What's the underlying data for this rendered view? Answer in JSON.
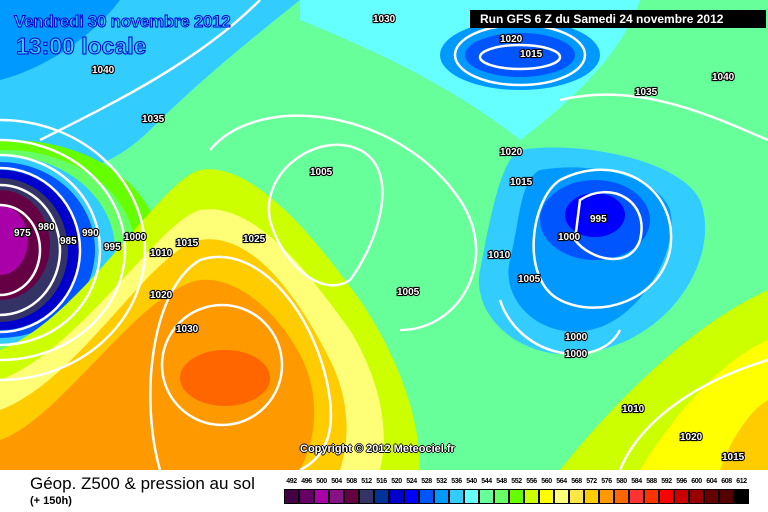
{
  "header": {
    "date": "Vendredi 30 novembre 2012",
    "time": "13:00 locale",
    "run": "Run GFS 6 Z du Samedi 24 novembre 2012"
  },
  "copyright": "Copyright © 2012 Meteociel.fr",
  "footer": {
    "title": "Géop. Z500 & pression au sol",
    "subtitle": "(+ 150h)"
  },
  "legend": {
    "labels": [
      "492",
      "496",
      "500",
      "504",
      "508",
      "512",
      "516",
      "520",
      "524",
      "528",
      "532",
      "536",
      "540",
      "544",
      "548",
      "552",
      "556",
      "560",
      "564",
      "568",
      "572",
      "576",
      "580",
      "584",
      "588",
      "592",
      "596",
      "600",
      "604",
      "608",
      "612"
    ],
    "colors": [
      "#440044",
      "#660066",
      "#aa00aa",
      "#881188",
      "#660044",
      "#333366",
      "#003399",
      "#0000cc",
      "#0000ff",
      "#0055ff",
      "#0099ff",
      "#33ccff",
      "#66ffff",
      "#66ff99",
      "#66ff66",
      "#66ff00",
      "#ccff00",
      "#ffff00",
      "#ffff77",
      "#ffe644",
      "#ffcc00",
      "#ff9900",
      "#ff6600",
      "#ff3333",
      "#ff3300",
      "#ff0000",
      "#cc0000",
      "#990000",
      "#660000",
      "#550000",
      "#000000"
    ]
  },
  "isobars": [
    "1030",
    "1040",
    "1035",
    "975",
    "980",
    "985",
    "990",
    "995",
    "1000",
    "1010",
    "1015",
    "1020",
    "1030",
    "1025",
    "1005",
    "1020",
    "1015",
    "1020",
    "1015",
    "1010",
    "995",
    "1000",
    "1005",
    "1005",
    "1000",
    "1000",
    "1035",
    "1040",
    "1010",
    "1015",
    "1020"
  ]
}
